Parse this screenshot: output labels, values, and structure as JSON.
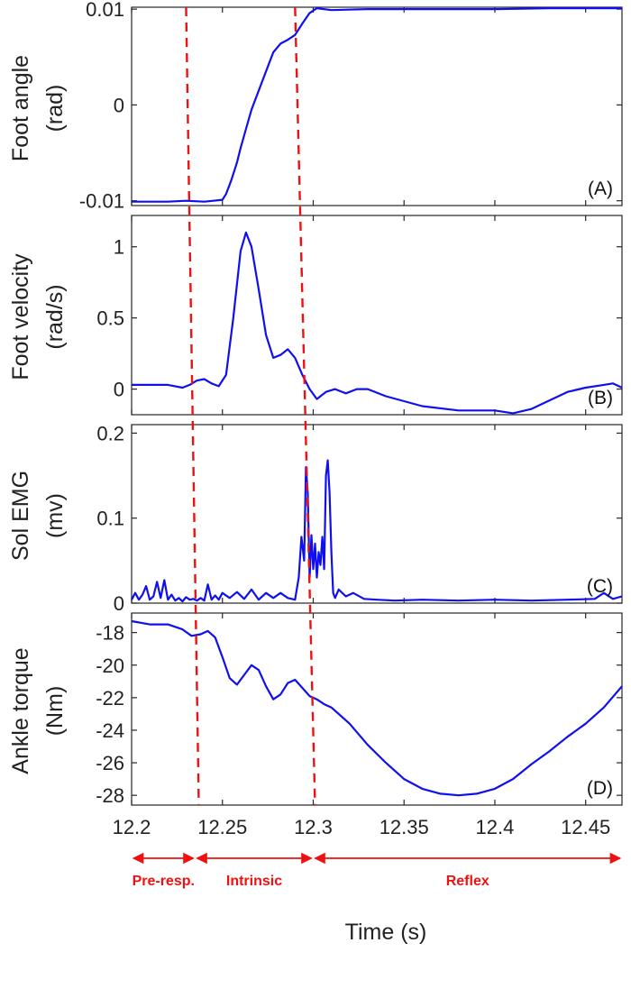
{
  "chart_data": [
    {
      "type": "line",
      "panel_label": "(A)",
      "ylabel_lines": [
        "Foot angle",
        "(rad)"
      ],
      "xlim": [
        12.2,
        12.47
      ],
      "ylim": [
        -0.0105,
        0.0102
      ],
      "yticks": [
        -0.01,
        0,
        0.01
      ],
      "ytick_labels": [
        "-0.01",
        "0",
        "0.01"
      ],
      "series": [
        {
          "name": "Foot angle",
          "color": "#1010ee",
          "x": [
            12.2,
            12.21,
            12.22,
            12.23,
            12.24,
            12.245,
            12.25,
            12.252,
            12.255,
            12.258,
            12.26,
            12.263,
            12.266,
            12.27,
            12.274,
            12.278,
            12.282,
            12.286,
            12.29,
            12.294,
            12.298,
            12.302,
            12.31,
            12.33,
            12.36,
            12.4,
            12.43,
            12.47
          ],
          "y": [
            -0.0101,
            -0.0101,
            -0.0101,
            -0.01,
            -0.0101,
            -0.01,
            -0.0099,
            -0.0093,
            -0.0078,
            -0.006,
            -0.0045,
            -0.0025,
            -0.0005,
            0.0015,
            0.0035,
            0.0055,
            0.0064,
            0.0068,
            0.0073,
            0.0085,
            0.0096,
            0.0101,
            0.0099,
            0.01,
            0.01,
            0.01,
            0.0101,
            0.0101
          ]
        }
      ]
    },
    {
      "type": "line",
      "panel_label": "(B)",
      "ylabel_lines": [
        "Foot velocity",
        "(rad/s)"
      ],
      "xlim": [
        12.2,
        12.47
      ],
      "ylim": [
        -0.18,
        1.22
      ],
      "yticks": [
        0,
        0.5,
        1
      ],
      "ytick_labels": [
        "0",
        "0.5",
        "1"
      ],
      "series": [
        {
          "name": "Foot velocity",
          "color": "#1010ee",
          "x": [
            12.2,
            12.21,
            12.22,
            12.228,
            12.232,
            12.236,
            12.24,
            12.244,
            12.248,
            12.252,
            12.256,
            12.26,
            12.263,
            12.266,
            12.27,
            12.274,
            12.278,
            12.282,
            12.286,
            12.29,
            12.294,
            12.298,
            12.302,
            12.307,
            12.312,
            12.318,
            12.324,
            12.33,
            12.34,
            12.36,
            12.38,
            12.4,
            12.41,
            12.42,
            12.43,
            12.44,
            12.45,
            12.46,
            12.465,
            12.47
          ],
          "y": [
            0.03,
            0.03,
            0.03,
            0.01,
            0.03,
            0.06,
            0.07,
            0.04,
            0.02,
            0.1,
            0.5,
            0.97,
            1.1,
            1.0,
            0.7,
            0.38,
            0.22,
            0.24,
            0.28,
            0.22,
            0.1,
            0.0,
            -0.07,
            -0.02,
            0.0,
            -0.03,
            0.0,
            0.0,
            -0.05,
            -0.12,
            -0.15,
            -0.15,
            -0.17,
            -0.14,
            -0.08,
            -0.02,
            0.01,
            0.03,
            0.04,
            0.01
          ]
        }
      ]
    },
    {
      "type": "line",
      "panel_label": "(C)",
      "ylabel_lines": [
        "Sol EMG",
        "(mv)"
      ],
      "xlim": [
        12.2,
        12.47
      ],
      "ylim": [
        0,
        0.21
      ],
      "yticks": [
        0,
        0.1,
        0.2
      ],
      "ytick_labels": [
        "0",
        "0.1",
        "0.2"
      ],
      "series": [
        {
          "name": "Sol EMG",
          "color": "#1010ee",
          "x": [
            12.2,
            12.202,
            12.204,
            12.206,
            12.208,
            12.21,
            12.212,
            12.214,
            12.216,
            12.218,
            12.22,
            12.222,
            12.224,
            12.226,
            12.228,
            12.23,
            12.232,
            12.234,
            12.236,
            12.238,
            12.24,
            12.242,
            12.244,
            12.246,
            12.248,
            12.25,
            12.254,
            12.258,
            12.262,
            12.266,
            12.27,
            12.274,
            12.278,
            12.282,
            12.286,
            12.29,
            12.292,
            12.2935,
            12.295,
            12.296,
            12.297,
            12.298,
            12.299,
            12.3,
            12.301,
            12.302,
            12.303,
            12.304,
            12.305,
            12.306,
            12.307,
            12.308,
            12.309,
            12.31,
            12.311,
            12.312,
            12.314,
            12.318,
            12.322,
            12.328,
            12.335,
            12.345,
            12.36,
            12.38,
            12.4,
            12.42,
            12.44,
            12.455,
            12.46,
            12.465,
            12.47
          ],
          "y": [
            0.004,
            0.012,
            0.004,
            0.01,
            0.02,
            0.004,
            0.008,
            0.025,
            0.006,
            0.027,
            0.004,
            0.01,
            0.003,
            0.006,
            0.002,
            0.007,
            0.004,
            0.005,
            0.003,
            0.006,
            0.003,
            0.022,
            0.004,
            0.009,
            0.004,
            0.012,
            0.006,
            0.013,
            0.005,
            0.016,
            0.004,
            0.012,
            0.006,
            0.012,
            0.006,
            0.004,
            0.03,
            0.078,
            0.05,
            0.16,
            0.13,
            0.03,
            0.08,
            0.04,
            0.07,
            0.03,
            0.06,
            0.045,
            0.078,
            0.04,
            0.15,
            0.168,
            0.13,
            0.06,
            0.012,
            0.006,
            0.016,
            0.008,
            0.012,
            0.005,
            0.004,
            0.003,
            0.004,
            0.003,
            0.004,
            0.003,
            0.004,
            0.005,
            0.012,
            0.005,
            0.008
          ]
        }
      ]
    },
    {
      "type": "line",
      "panel_label": "(D)",
      "ylabel_lines": [
        "Ankle torque",
        "(Nm)"
      ],
      "xlim": [
        12.2,
        12.47
      ],
      "ylim": [
        -28.6,
        -16.8
      ],
      "yticks": [
        -28,
        -26,
        -24,
        -22,
        -20,
        -18
      ],
      "ytick_labels": [
        "-28",
        "-26",
        "-24",
        "-22",
        "-20",
        "-18"
      ],
      "xticks": [
        12.2,
        12.25,
        12.3,
        12.35,
        12.4,
        12.45
      ],
      "xtick_labels": [
        "12.2",
        "12.25",
        "12.3",
        "12.35",
        "12.4",
        "12.45"
      ],
      "xlabel": "Time (s)",
      "series": [
        {
          "name": "Ankle torque",
          "color": "#1010ee",
          "x": [
            12.2,
            12.21,
            12.22,
            12.228,
            12.233,
            12.238,
            12.242,
            12.246,
            12.25,
            12.254,
            12.258,
            12.262,
            12.266,
            12.27,
            12.274,
            12.278,
            12.282,
            12.286,
            12.29,
            12.294,
            12.298,
            12.302,
            12.306,
            12.31,
            12.32,
            12.33,
            12.34,
            12.35,
            12.36,
            12.37,
            12.38,
            12.39,
            12.4,
            12.41,
            12.42,
            12.43,
            12.44,
            12.45,
            12.46,
            12.47
          ],
          "y": [
            -17.3,
            -17.5,
            -17.5,
            -17.8,
            -18.2,
            -18.1,
            -17.9,
            -18.3,
            -19.5,
            -20.8,
            -21.2,
            -20.6,
            -20.0,
            -20.3,
            -21.3,
            -22.1,
            -21.8,
            -21.1,
            -20.9,
            -21.4,
            -21.9,
            -22.1,
            -22.4,
            -22.6,
            -23.6,
            -24.9,
            -26.0,
            -27.0,
            -27.6,
            -27.9,
            -28.0,
            -27.9,
            -27.6,
            -27.0,
            -26.1,
            -25.3,
            -24.4,
            -23.6,
            -22.6,
            -21.3
          ]
        }
      ]
    }
  ],
  "divider_lines": {
    "color": "#ee1111",
    "lines": [
      {
        "x_top": 12.23,
        "x_bottom": 12.237
      },
      {
        "x_top": 12.29,
        "x_bottom": 12.301
      }
    ]
  },
  "phases": [
    {
      "label": "Pre-resp.",
      "x_start": 12.2,
      "x_end": 12.235
    },
    {
      "label": "Intrinsic",
      "x_start": 12.235,
      "x_end": 12.3
    },
    {
      "label": "Reflex",
      "x_start": 12.3,
      "x_end": 12.47
    }
  ]
}
